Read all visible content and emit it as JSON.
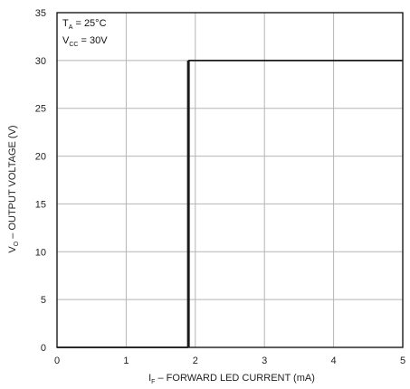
{
  "chart_data": {
    "type": "line",
    "title": "",
    "xlabel": {
      "main": "I",
      "sub": "F",
      "rest": " – FORWARD LED CURRENT (mA)"
    },
    "ylabel": {
      "main": "V",
      "sub": "O",
      "rest": " – OUTPUT VOLTAGE (V)"
    },
    "xlim": [
      0,
      5
    ],
    "ylim": [
      0,
      35
    ],
    "xticks": [
      "0",
      "1",
      "2",
      "3",
      "4",
      "5"
    ],
    "yticks": [
      "0",
      "5",
      "10",
      "15",
      "20",
      "25",
      "30",
      "35"
    ],
    "grid": true,
    "series": [
      {
        "x": [
          0,
          1.9,
          1.9,
          5
        ],
        "y": [
          0,
          0,
          30,
          30
        ]
      }
    ],
    "annotations": {
      "ta": {
        "main": "T",
        "sub": "A",
        "rest": " = 25°C"
      },
      "vcc": {
        "main": "V",
        "sub": "CC",
        "rest": " = 30V"
      }
    },
    "colors": {
      "line": "#1a1a1a",
      "grid": "#b5b5b5",
      "frame": "#1a1a1a"
    }
  }
}
